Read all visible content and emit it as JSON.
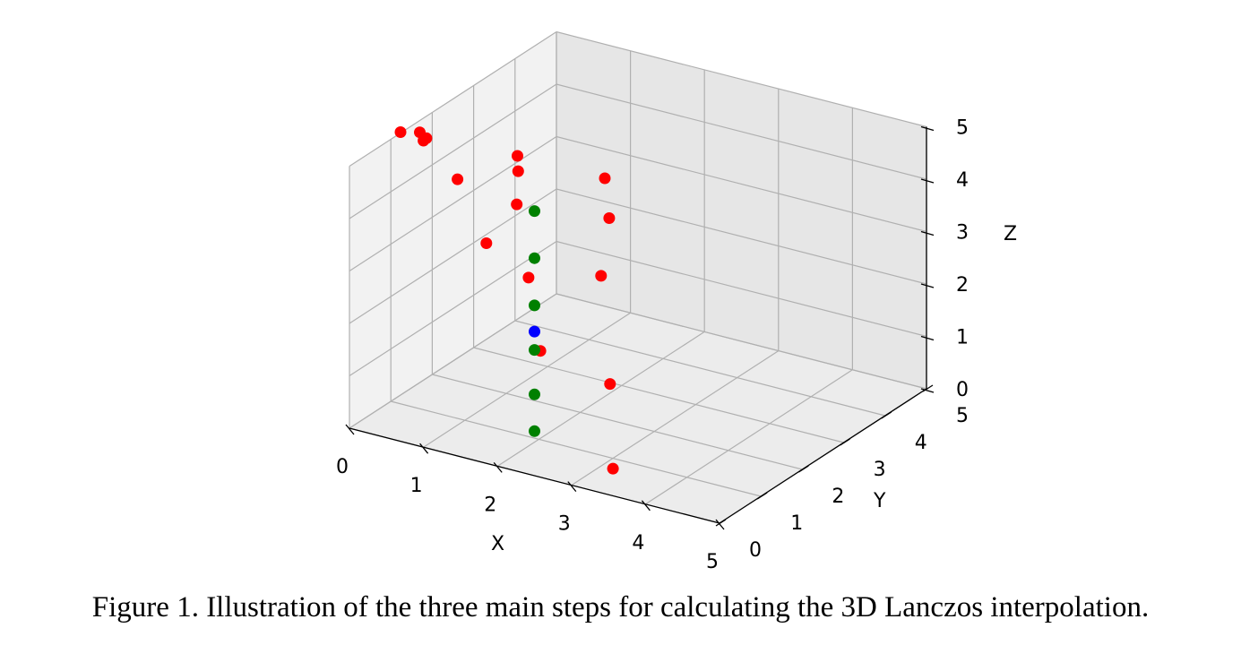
{
  "caption": "Figure 1. Illustration of the three main steps for calculating the 3D Lanczos interpolation.",
  "chart_data": {
    "type": "scatter3d",
    "title": "",
    "xlabel": "X",
    "ylabel": "Y",
    "zlabel": "Z",
    "xlim": [
      0,
      5
    ],
    "ylim": [
      0,
      5
    ],
    "zlim": [
      0,
      5
    ],
    "xticks": [
      "0",
      "1",
      "2",
      "3",
      "4",
      "5"
    ],
    "yticks": [
      "0",
      "1",
      "2",
      "3",
      "4",
      "5"
    ],
    "zticks": [
      "0",
      "1",
      "2",
      "3",
      "4",
      "5"
    ],
    "grid": true,
    "colors": {
      "red": "#ff0000",
      "green": "#008000",
      "blue": "#0000ff",
      "pane_left": "#f2f2f2",
      "pane_right": "#e6e6e6",
      "pane_floor": "#ececec",
      "grid": "#b0b0b0"
    },
    "series": [
      {
        "color": "red",
        "points": [
          [
            3.56,
            0,
            0.52
          ],
          [
            2.58,
            0,
            2.41
          ],
          [
            1.85,
            0,
            4.2
          ],
          [
            0.69,
            0,
            5.9
          ],
          [
            3.52,
            0,
            2.12
          ],
          [
            2.42,
            0,
            3.75
          ],
          [
            1.46,
            0,
            5.28
          ],
          [
            3.4,
            0,
            4.14
          ],
          [
            2.26,
            0,
            5.09
          ],
          [
            1.04,
            0,
            5.91
          ],
          [
            3.51,
            0,
            5.28
          ],
          [
            2.28,
            0,
            5.73
          ],
          [
            0.95,
            0,
            5.99
          ],
          [
            3.45,
            0,
            6.02
          ],
          [
            2.27,
            0,
            6.02
          ],
          [
            1.0,
            0,
            5.85
          ]
        ]
      },
      {
        "color": "green",
        "points": [
          [
            2.5,
            0,
            0.85
          ],
          [
            2.5,
            0,
            1.55
          ],
          [
            2.5,
            0,
            2.4
          ],
          [
            2.5,
            0,
            3.25
          ],
          [
            2.5,
            0,
            4.15
          ],
          [
            2.5,
            0,
            5.05
          ]
        ]
      },
      {
        "color": "blue",
        "points": [
          [
            2.5,
            0,
            2.75
          ]
        ]
      }
    ]
  }
}
